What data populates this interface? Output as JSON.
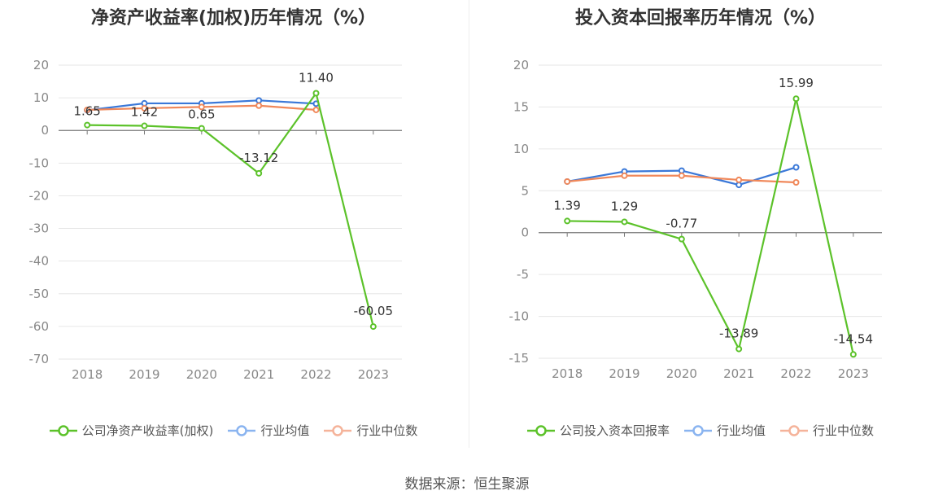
{
  "source_label": "数据来源：恒生聚源",
  "chart_data": [
    {
      "type": "line",
      "title": "净资产收益率(加权)历年情况（%）",
      "categories": [
        "2018",
        "2019",
        "2020",
        "2021",
        "2022",
        "2023"
      ],
      "ylim": [
        -70,
        20
      ],
      "yticks": [
        20,
        10,
        0,
        -10,
        -20,
        -30,
        -40,
        -50,
        -60,
        -70
      ],
      "ytick_labels": [
        "20",
        "10",
        "0",
        "-10",
        "-20",
        "-30",
        "-40",
        "-50",
        "-60",
        "-70"
      ],
      "series": [
        {
          "name": "公司净资产收益率(加权)",
          "color": "#5cc22a",
          "values": [
            1.65,
            1.42,
            0.65,
            -13.12,
            11.4,
            -60.05
          ],
          "labels": [
            "1.65",
            "1.42",
            "0.65",
            "-13.12",
            "11.40",
            "-60.05"
          ]
        },
        {
          "name": "行业均值",
          "color": "#3a78d8",
          "values": [
            6.2,
            8.3,
            8.3,
            9.2,
            8.2,
            null
          ]
        },
        {
          "name": "行业中位数",
          "color": "#f0885a",
          "values": [
            6.3,
            6.8,
            7.2,
            7.6,
            6.3,
            null
          ]
        }
      ]
    },
    {
      "type": "line",
      "title": "投入资本回报率历年情况（%）",
      "categories": [
        "2018",
        "2019",
        "2020",
        "2021",
        "2022",
        "2023"
      ],
      "ylim": [
        -15,
        20
      ],
      "yticks": [
        20,
        15,
        10,
        5,
        0,
        -5,
        -10,
        -15
      ],
      "ytick_labels": [
        "20",
        "15",
        "10",
        "5",
        "0",
        "-5",
        "-10",
        "-15"
      ],
      "series": [
        {
          "name": "公司投入资本回报率",
          "color": "#5cc22a",
          "values": [
            1.39,
            1.29,
            -0.77,
            -13.89,
            15.99,
            -14.54
          ],
          "labels": [
            "1.39",
            "1.29",
            "-0.77",
            "-13.89",
            "15.99",
            "-14.54"
          ]
        },
        {
          "name": "行业均值",
          "color": "#3a78d8",
          "values": [
            6.1,
            7.3,
            7.4,
            5.7,
            7.8,
            null
          ]
        },
        {
          "name": "行业中位数",
          "color": "#f0885a",
          "values": [
            6.1,
            6.8,
            6.8,
            6.3,
            6.0,
            null
          ]
        }
      ]
    }
  ]
}
